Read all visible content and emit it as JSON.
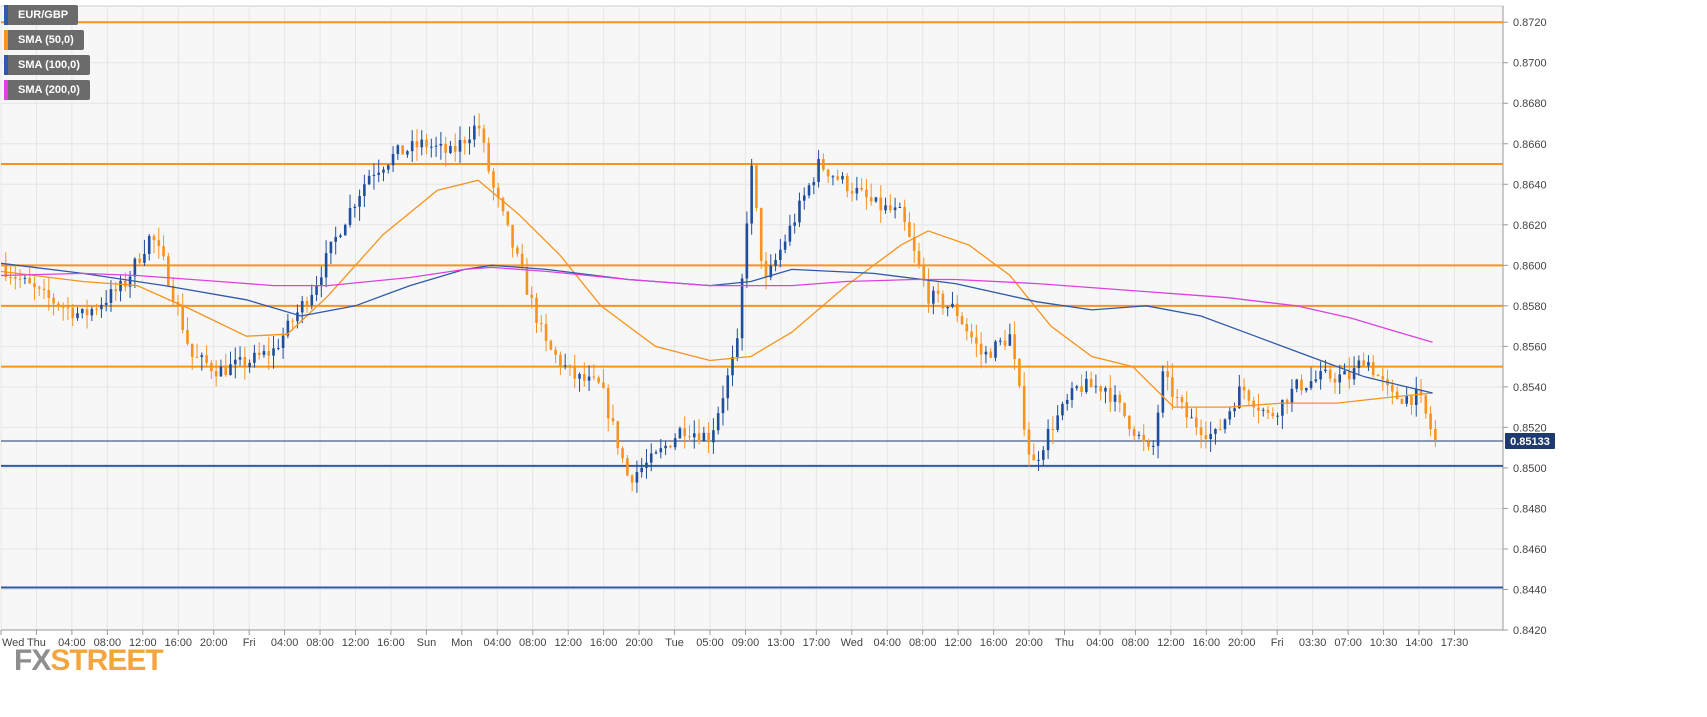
{
  "watermark": {
    "fx": "FX",
    "street": "STREET"
  },
  "legend": [
    {
      "label": "EUR/GBP",
      "color": "#2f5aa8"
    },
    {
      "label": "SMA (50,0)",
      "color": "#f7931e"
    },
    {
      "label": "SMA (100,0)",
      "color": "#2f5aa8"
    },
    {
      "label": "SMA (200,0)",
      "color": "#e040e0"
    }
  ],
  "chart_data": {
    "type": "candlestick",
    "symbol": "EUR/GBP",
    "ylim": [
      0.842,
      0.8728
    ],
    "y_ticks": [
      "0.8720",
      "0.8700",
      "0.8680",
      "0.8660",
      "0.8640",
      "0.8620",
      "0.8600",
      "0.8580",
      "0.8560",
      "0.8540",
      "0.8520",
      "0.8500",
      "0.8480",
      "0.8460",
      "0.8440",
      "0.8420"
    ],
    "x_ticks": [
      "Wed",
      "Thu",
      "04:00",
      "08:00",
      "12:00",
      "16:00",
      "20:00",
      "Fri",
      "04:00",
      "08:00",
      "12:00",
      "16:00",
      "Sun",
      "Mon",
      "04:00",
      "08:00",
      "12:00",
      "16:00",
      "20:00",
      "Tue",
      "05:00",
      "09:00",
      "13:00",
      "17:00",
      "Wed",
      "04:00",
      "08:00",
      "12:00",
      "16:00",
      "20:00",
      "Thu",
      "04:00",
      "08:00",
      "12:00",
      "16:00",
      "20:00",
      "Fri",
      "03:30",
      "07:00",
      "10:30",
      "14:00",
      "17:30"
    ],
    "current_price": {
      "label": "0.85133",
      "value": 0.85133
    },
    "horizontal_levels": [
      {
        "value": 0.872,
        "color": "#f7931e"
      },
      {
        "value": 0.865,
        "color": "#f7931e"
      },
      {
        "value": 0.86,
        "color": "#f7931e"
      },
      {
        "value": 0.858,
        "color": "#f7931e"
      },
      {
        "value": 0.855,
        "color": "#f7931e"
      },
      {
        "value": 0.8501,
        "color": "#2f5aa8"
      },
      {
        "value": 0.8441,
        "color": "#2f5aa8"
      }
    ],
    "price_path": [
      [
        0,
        0.86
      ],
      [
        1.5,
        0.8585
      ],
      [
        3,
        0.8575
      ],
      [
        4.5,
        0.859
      ],
      [
        5.5,
        0.8615
      ],
      [
        6,
        0.86
      ],
      [
        7,
        0.8555
      ],
      [
        8,
        0.8548
      ],
      [
        9,
        0.8552
      ],
      [
        10,
        0.8558
      ],
      [
        11.5,
        0.859
      ],
      [
        12.5,
        0.862
      ],
      [
        13.5,
        0.8645
      ],
      [
        14.5,
        0.8655
      ],
      [
        15.5,
        0.866
      ],
      [
        16.5,
        0.8655
      ],
      [
        17.5,
        0.867
      ],
      [
        18,
        0.864
      ],
      [
        19,
        0.86
      ],
      [
        20,
        0.856
      ],
      [
        21,
        0.8545
      ],
      [
        22,
        0.854
      ],
      [
        23,
        0.8495
      ],
      [
        24,
        0.8505
      ],
      [
        25,
        0.852
      ],
      [
        26,
        0.8515
      ],
      [
        27,
        0.856
      ],
      [
        27.5,
        0.865
      ],
      [
        28,
        0.859
      ],
      [
        29,
        0.862
      ],
      [
        30,
        0.865
      ],
      [
        31,
        0.864
      ],
      [
        32,
        0.863
      ],
      [
        33,
        0.8625
      ],
      [
        33.5,
        0.8605
      ],
      [
        34,
        0.8585
      ],
      [
        35,
        0.8578
      ],
      [
        36,
        0.8555
      ],
      [
        37,
        0.8565
      ],
      [
        37.8,
        0.85
      ],
      [
        38.5,
        0.852
      ],
      [
        39.5,
        0.854
      ],
      [
        40.5,
        0.854
      ],
      [
        41.5,
        0.852
      ],
      [
        42.2,
        0.8505
      ],
      [
        42.6,
        0.8545
      ],
      [
        43.5,
        0.8525
      ],
      [
        44.5,
        0.8515
      ],
      [
        45.5,
        0.854
      ],
      [
        46.5,
        0.8525
      ],
      [
        47.5,
        0.854
      ],
      [
        48.5,
        0.8545
      ],
      [
        49.5,
        0.8545
      ],
      [
        50,
        0.8555
      ],
      [
        51,
        0.8535
      ],
      [
        52,
        0.8535
      ],
      [
        52.6,
        0.8513
      ]
    ],
    "sma_50": [
      [
        0,
        0.8597
      ],
      [
        3,
        0.8592
      ],
      [
        5,
        0.859
      ],
      [
        7,
        0.8578
      ],
      [
        9,
        0.8565
      ],
      [
        10.5,
        0.8566
      ],
      [
        12,
        0.8585
      ],
      [
        14,
        0.8615
      ],
      [
        16,
        0.8637
      ],
      [
        17.5,
        0.8642
      ],
      [
        19,
        0.8625
      ],
      [
        20.5,
        0.8605
      ],
      [
        22,
        0.858
      ],
      [
        24,
        0.856
      ],
      [
        26,
        0.8553
      ],
      [
        27.5,
        0.8555
      ],
      [
        29,
        0.8567
      ],
      [
        31,
        0.859
      ],
      [
        33,
        0.861
      ],
      [
        34,
        0.8617
      ],
      [
        35.5,
        0.861
      ],
      [
        37,
        0.8595
      ],
      [
        38.5,
        0.857
      ],
      [
        40,
        0.8555
      ],
      [
        41.5,
        0.855
      ],
      [
        43,
        0.853
      ],
      [
        45,
        0.853
      ],
      [
        47,
        0.8532
      ],
      [
        49,
        0.8532
      ],
      [
        51,
        0.8535
      ],
      [
        52.5,
        0.8537
      ]
    ],
    "sma_100": [
      [
        0,
        0.8601
      ],
      [
        3,
        0.8596
      ],
      [
        6,
        0.859
      ],
      [
        9,
        0.8583
      ],
      [
        11,
        0.8575
      ],
      [
        13,
        0.858
      ],
      [
        15,
        0.859
      ],
      [
        17,
        0.8598
      ],
      [
        18,
        0.86
      ],
      [
        20,
        0.8598
      ],
      [
        23,
        0.8593
      ],
      [
        26,
        0.859
      ],
      [
        27.5,
        0.8592
      ],
      [
        29,
        0.8598
      ],
      [
        32,
        0.8596
      ],
      [
        35,
        0.8591
      ],
      [
        38,
        0.8582
      ],
      [
        40,
        0.8578
      ],
      [
        42,
        0.858
      ],
      [
        44,
        0.8575
      ],
      [
        46,
        0.8565
      ],
      [
        48,
        0.8555
      ],
      [
        50,
        0.8545
      ],
      [
        52.5,
        0.8537
      ]
    ],
    "sma_200": [
      [
        0,
        0.8595
      ],
      [
        3,
        0.8596
      ],
      [
        5,
        0.8595
      ],
      [
        8,
        0.8592
      ],
      [
        10,
        0.859
      ],
      [
        12,
        0.859
      ],
      [
        15,
        0.8594
      ],
      [
        17,
        0.8598
      ],
      [
        18,
        0.8599
      ],
      [
        20,
        0.8597
      ],
      [
        23,
        0.8593
      ],
      [
        26,
        0.859
      ],
      [
        29,
        0.859
      ],
      [
        31,
        0.8592
      ],
      [
        33.5,
        0.8593
      ],
      [
        35,
        0.8593
      ],
      [
        38,
        0.8591
      ],
      [
        41,
        0.8588
      ],
      [
        43,
        0.8586
      ],
      [
        45,
        0.8584
      ],
      [
        47.5,
        0.858
      ],
      [
        49.5,
        0.8574
      ],
      [
        51,
        0.8568
      ],
      [
        52.5,
        0.8562
      ]
    ]
  }
}
